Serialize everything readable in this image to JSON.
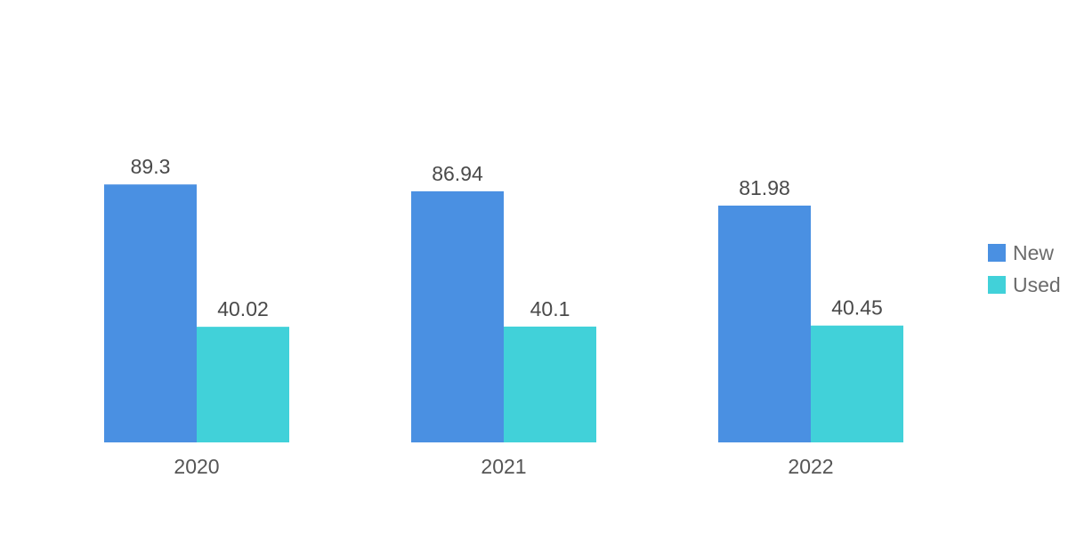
{
  "chart_data": {
    "type": "bar",
    "categories": [
      "2020",
      "2021",
      "2022"
    ],
    "series": [
      {
        "name": "New",
        "values": [
          89.3,
          86.94,
          81.98
        ],
        "color": "#4a90e2"
      },
      {
        "name": "Used",
        "values": [
          40.02,
          40.1,
          40.45
        ],
        "color": "#41d1d9"
      }
    ],
    "ylim": [
      0,
      100
    ],
    "grid": false,
    "legend": {
      "placement": "right"
    }
  }
}
